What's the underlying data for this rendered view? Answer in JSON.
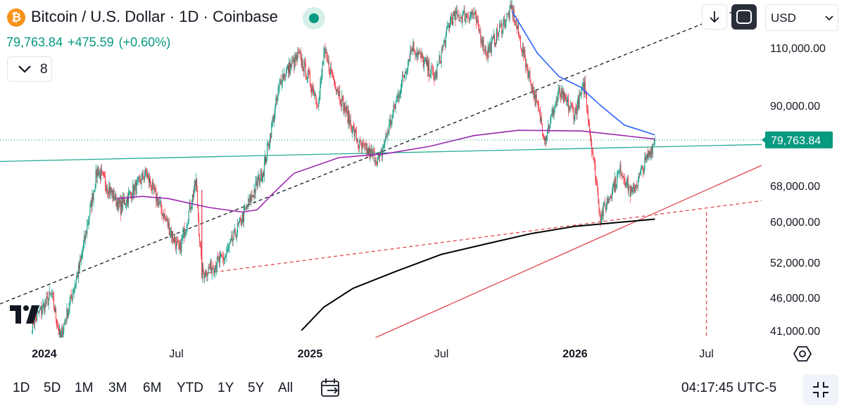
{
  "header": {
    "coin_glyph": "₿",
    "coin_icon": "bitcoin-icon",
    "title": "Bitcoin / U.S. Dollar · 1D · Coinbase",
    "price": "79,763.84",
    "change": "+475.59",
    "change_pct": "(+0.60%)",
    "indicator_count": "8",
    "currency": "USD"
  },
  "footer": {
    "ranges": [
      "1D",
      "5D",
      "1M",
      "3M",
      "6M",
      "YTD",
      "1Y",
      "5Y",
      "All"
    ],
    "clock": "04:17:45 UTC-5"
  },
  "colors": {
    "up": "#089981",
    "down": "#f23645",
    "sma_blue": "#2962ff",
    "sma_purple": "#9c27b0",
    "sma_black": "#000000",
    "trend_red": "#e0484f",
    "trend_green": "#22ab94"
  },
  "chart_data": {
    "type": "candlestick",
    "symbol": "Bitcoin / U.S. Dollar",
    "interval": "1D",
    "exchange": "Coinbase",
    "y_scale": "log",
    "y_ticks": [
      "110,000.00",
      "90,000.00",
      "79,763.84",
      "68,000.00",
      "60,000.00",
      "52,000.00",
      "46,000.00",
      "41,000.00"
    ],
    "y_tick_values": [
      110000,
      90000,
      68000,
      60000,
      52000,
      46000,
      41000
    ],
    "ylim": [
      40000,
      130000
    ],
    "x_ticks": [
      {
        "label": "2024",
        "date": "2024-01-01",
        "bold": true
      },
      {
        "label": "Jul",
        "date": "2024-07-01",
        "bold": false
      },
      {
        "label": "2025",
        "date": "2025-01-01",
        "bold": true
      },
      {
        "label": "Jul",
        "date": "2025-07-01",
        "bold": false
      },
      {
        "label": "2026",
        "date": "2026-01-01",
        "bold": true
      },
      {
        "label": "Jul",
        "date": "2026-07-01",
        "bold": false
      }
    ],
    "xlim": [
      "2023-11-01",
      "2026-09-15"
    ],
    "last_price": 79763.84,
    "last_price_label": "79,763.84",
    "price_path": [
      [
        "2023-12-15",
        42000
      ],
      [
        "2024-01-11",
        46500
      ],
      [
        "2024-01-23",
        39800
      ],
      [
        "2024-02-20",
        52000
      ],
      [
        "2024-03-14",
        72000
      ],
      [
        "2024-04-15",
        63000
      ],
      [
        "2024-05-20",
        71000
      ],
      [
        "2024-07-05",
        54000
      ],
      [
        "2024-07-28",
        69000
      ],
      [
        "2024-08-05",
        50000
      ],
      [
        "2024-09-06",
        53000
      ],
      [
        "2024-10-29",
        72000
      ],
      [
        "2024-11-22",
        99000
      ],
      [
        "2024-12-17",
        107000
      ],
      [
        "2025-01-13",
        91000
      ],
      [
        "2025-01-20",
        108000
      ],
      [
        "2025-03-10",
        78000
      ],
      [
        "2025-04-07",
        74500
      ],
      [
        "2025-05-22",
        111000
      ],
      [
        "2025-06-22",
        99000
      ],
      [
        "2025-07-14",
        122000
      ],
      [
        "2025-08-14",
        124000
      ],
      [
        "2025-09-01",
        108000
      ],
      [
        "2025-10-06",
        126000
      ],
      [
        "2025-11-21",
        80500
      ],
      [
        "2025-12-10",
        94000
      ],
      [
        "2025-12-31",
        87500
      ],
      [
        "2026-01-14",
        96500
      ],
      [
        "2026-02-05",
        61000
      ],
      [
        "2026-03-05",
        72000
      ],
      [
        "2026-03-20",
        66000
      ],
      [
        "2026-04-21",
        79763.84
      ]
    ],
    "series": [
      {
        "key": "sma_blue",
        "color": "#2962ff",
        "points": [
          [
            "2025-10-06",
            125000
          ],
          [
            "2025-10-20",
            118000
          ],
          [
            "2025-11-10",
            108000
          ],
          [
            "2025-12-10",
            99500
          ],
          [
            "2026-01-08",
            96000
          ],
          [
            "2026-02-05",
            90000
          ],
          [
            "2026-03-10",
            84000
          ],
          [
            "2026-04-21",
            81200
          ]
        ]
      },
      {
        "key": "sma_purple",
        "color": "#9c27b0",
        "points": [
          [
            "2024-04-10",
            65000
          ],
          [
            "2024-05-15",
            65500
          ],
          [
            "2024-06-20",
            65000
          ],
          [
            "2024-08-15",
            63000
          ],
          [
            "2024-09-30",
            62000
          ],
          [
            "2024-10-20",
            62500
          ],
          [
            "2024-11-10",
            66000
          ],
          [
            "2024-12-10",
            71000
          ],
          [
            "2025-02-10",
            75000
          ],
          [
            "2025-04-15",
            76000
          ],
          [
            "2025-06-15",
            78000
          ],
          [
            "2025-08-15",
            81000
          ],
          [
            "2025-10-15",
            82500
          ],
          [
            "2026-01-10",
            82300
          ],
          [
            "2026-04-21",
            80000
          ]
        ]
      },
      {
        "key": "sma_black",
        "color": "#000000",
        "points": [
          [
            "2024-12-20",
            41000
          ],
          [
            "2025-01-20",
            44500
          ],
          [
            "2025-03-01",
            47500
          ],
          [
            "2025-05-01",
            50500
          ],
          [
            "2025-07-01",
            53500
          ],
          [
            "2025-09-01",
            55500
          ],
          [
            "2025-11-01",
            57500
          ],
          [
            "2026-01-01",
            59000
          ],
          [
            "2026-04-21",
            60500
          ]
        ]
      }
    ],
    "lines": [
      {
        "kind": "trend",
        "color": "#22ab94",
        "dash": false,
        "from": [
          "2023-11-01",
          74000
        ],
        "to": [
          "2026-09-15",
          78500
        ]
      },
      {
        "kind": "trend",
        "color": "#131722",
        "dash": true,
        "from": [
          "2023-11-01",
          45000
        ],
        "to": [
          "2026-08-08",
          125000
        ]
      },
      {
        "kind": "trend",
        "color": "#e0484f",
        "dash": false,
        "from": [
          "2025-04-01",
          40000
        ],
        "to": [
          "2026-09-15",
          73000
        ]
      },
      {
        "kind": "trend",
        "color": "#e0484f",
        "dash": true,
        "from": [
          "2024-08-05",
          50000
        ],
        "to": [
          "2026-09-15",
          64500
        ]
      },
      {
        "kind": "vertical",
        "color": "#e0484f",
        "dash": true,
        "from": [
          "2026-07-01",
          62000
        ],
        "to": [
          "2026-07-01",
          40000
        ]
      },
      {
        "kind": "segment",
        "color": "#e0484f",
        "dash": false,
        "from": [
          "2024-08-05",
          67000
        ],
        "to": [
          "2024-08-05",
          50000
        ]
      }
    ]
  }
}
